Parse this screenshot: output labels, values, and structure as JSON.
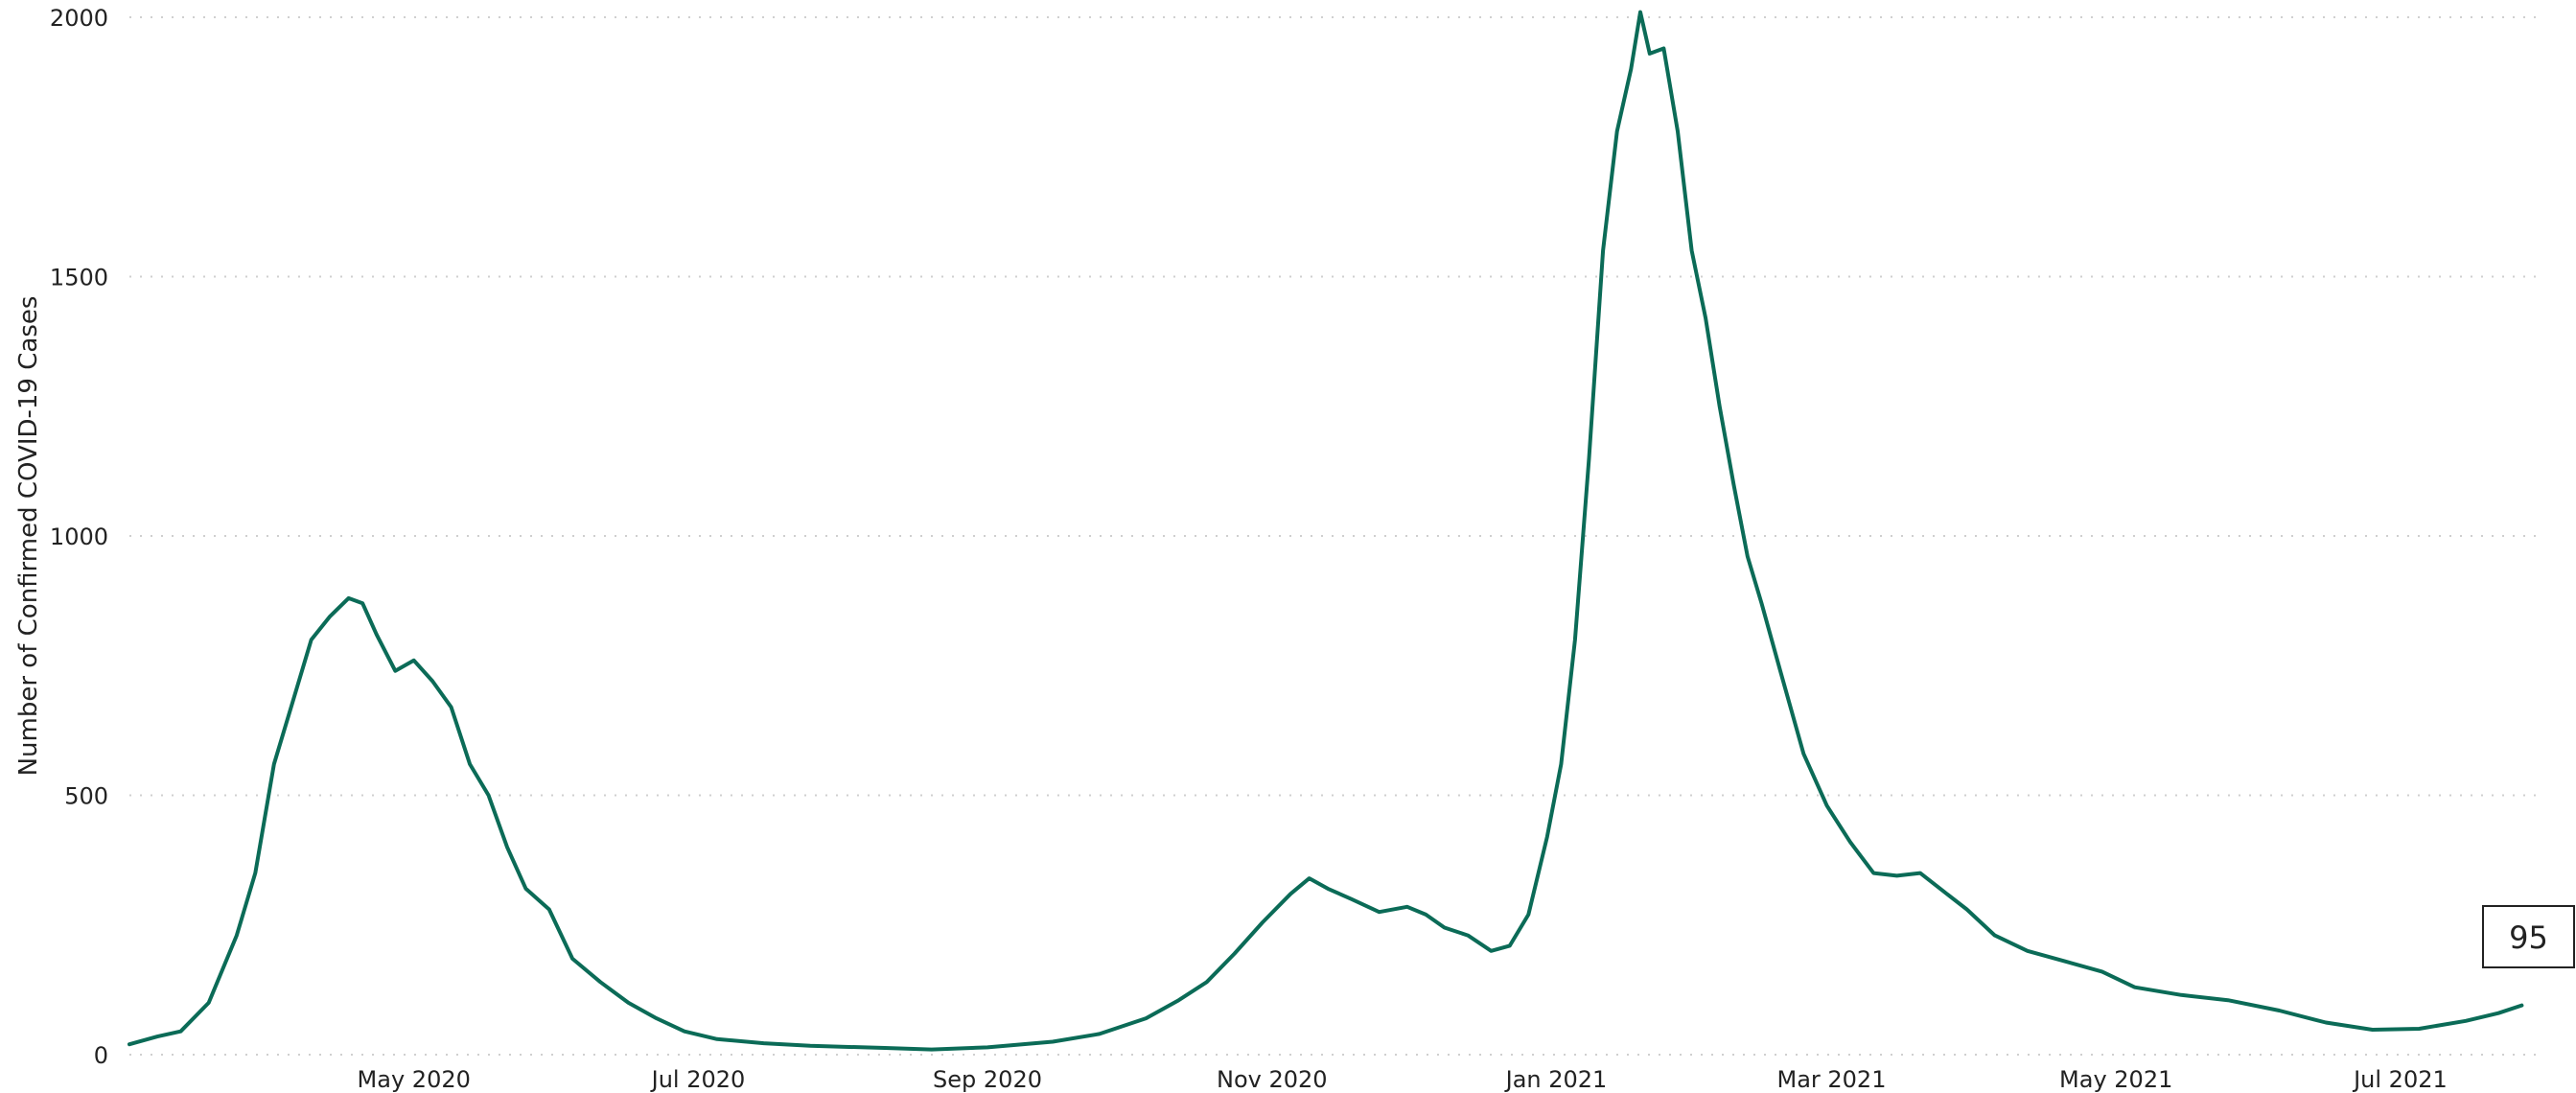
{
  "chart_data": {
    "type": "line",
    "title": "",
    "xlabel": "",
    "ylabel": "Number of Confirmed COVID-19 Cases",
    "ylim": [
      0,
      2000
    ],
    "xlim": [
      "2020-03-01",
      "2021-07-30"
    ],
    "grid": "horizontal dotted",
    "legend": "none",
    "y_ticks": [
      0,
      500,
      1000,
      1500,
      2000
    ],
    "x_ticks": [
      {
        "date": "2020-05-01",
        "label": "May 2020"
      },
      {
        "date": "2020-07-01",
        "label": "Jul 2020"
      },
      {
        "date": "2020-09-01",
        "label": "Sep 2020"
      },
      {
        "date": "2020-11-01",
        "label": "Nov 2020"
      },
      {
        "date": "2021-01-01",
        "label": "Jan 2021"
      },
      {
        "date": "2021-03-01",
        "label": "Mar 2021"
      },
      {
        "date": "2021-05-01",
        "label": "May 2021"
      },
      {
        "date": "2021-07-01",
        "label": "Jul 2021"
      }
    ],
    "series": [
      {
        "color": "#0b6b57",
        "points": [
          [
            "2020-03-01",
            20
          ],
          [
            "2020-03-07",
            35
          ],
          [
            "2020-03-12",
            45
          ],
          [
            "2020-03-18",
            100
          ],
          [
            "2020-03-24",
            230
          ],
          [
            "2020-03-28",
            350
          ],
          [
            "2020-04-01",
            560
          ],
          [
            "2020-04-05",
            680
          ],
          [
            "2020-04-09",
            800
          ],
          [
            "2020-04-13",
            845
          ],
          [
            "2020-04-17",
            880
          ],
          [
            "2020-04-20",
            870
          ],
          [
            "2020-04-23",
            810
          ],
          [
            "2020-04-27",
            740
          ],
          [
            "2020-05-01",
            760
          ],
          [
            "2020-05-05",
            720
          ],
          [
            "2020-05-09",
            670
          ],
          [
            "2020-05-13",
            560
          ],
          [
            "2020-05-17",
            500
          ],
          [
            "2020-05-21",
            400
          ],
          [
            "2020-05-25",
            320
          ],
          [
            "2020-05-30",
            280
          ],
          [
            "2020-06-04",
            185
          ],
          [
            "2020-06-10",
            140
          ],
          [
            "2020-06-16",
            100
          ],
          [
            "2020-06-22",
            70
          ],
          [
            "2020-06-28",
            45
          ],
          [
            "2020-07-05",
            30
          ],
          [
            "2020-07-15",
            22
          ],
          [
            "2020-07-25",
            17
          ],
          [
            "2020-08-10",
            13
          ],
          [
            "2020-08-20",
            10
          ],
          [
            "2020-09-01",
            14
          ],
          [
            "2020-09-15",
            25
          ],
          [
            "2020-09-25",
            40
          ],
          [
            "2020-10-05",
            70
          ],
          [
            "2020-10-12",
            105
          ],
          [
            "2020-10-18",
            140
          ],
          [
            "2020-10-24",
            195
          ],
          [
            "2020-10-30",
            255
          ],
          [
            "2020-11-05",
            310
          ],
          [
            "2020-11-09",
            340
          ],
          [
            "2020-11-13",
            320
          ],
          [
            "2020-11-18",
            300
          ],
          [
            "2020-11-24",
            275
          ],
          [
            "2020-11-30",
            285
          ],
          [
            "2020-12-04",
            270
          ],
          [
            "2020-12-08",
            245
          ],
          [
            "2020-12-13",
            230
          ],
          [
            "2020-12-18",
            200
          ],
          [
            "2020-12-22",
            210
          ],
          [
            "2020-12-26",
            270
          ],
          [
            "2020-12-30",
            420
          ],
          [
            "2021-01-02",
            560
          ],
          [
            "2021-01-05",
            800
          ],
          [
            "2021-01-08",
            1150
          ],
          [
            "2021-01-11",
            1550
          ],
          [
            "2021-01-14",
            1780
          ],
          [
            "2021-01-17",
            1900
          ],
          [
            "2021-01-19",
            2010
          ],
          [
            "2021-01-21",
            1930
          ],
          [
            "2021-01-24",
            1940
          ],
          [
            "2021-01-27",
            1780
          ],
          [
            "2021-01-30",
            1550
          ],
          [
            "2021-02-02",
            1420
          ],
          [
            "2021-02-05",
            1250
          ],
          [
            "2021-02-08",
            1100
          ],
          [
            "2021-02-11",
            960
          ],
          [
            "2021-02-14",
            870
          ],
          [
            "2021-02-18",
            740
          ],
          [
            "2021-02-23",
            580
          ],
          [
            "2021-02-28",
            480
          ],
          [
            "2021-03-05",
            410
          ],
          [
            "2021-03-10",
            350
          ],
          [
            "2021-03-15",
            345
          ],
          [
            "2021-03-20",
            350
          ],
          [
            "2021-03-25",
            315
          ],
          [
            "2021-03-30",
            280
          ],
          [
            "2021-04-05",
            230
          ],
          [
            "2021-04-12",
            200
          ],
          [
            "2021-04-20",
            180
          ],
          [
            "2021-04-28",
            160
          ],
          [
            "2021-05-05",
            130
          ],
          [
            "2021-05-15",
            115
          ],
          [
            "2021-05-25",
            105
          ],
          [
            "2021-06-05",
            85
          ],
          [
            "2021-06-15",
            62
          ],
          [
            "2021-06-25",
            48
          ],
          [
            "2021-07-05",
            50
          ],
          [
            "2021-07-15",
            65
          ],
          [
            "2021-07-22",
            80
          ],
          [
            "2021-07-27",
            95
          ]
        ]
      }
    ],
    "annotations": [
      {
        "text": "95",
        "anchor": "last-point"
      }
    ]
  }
}
